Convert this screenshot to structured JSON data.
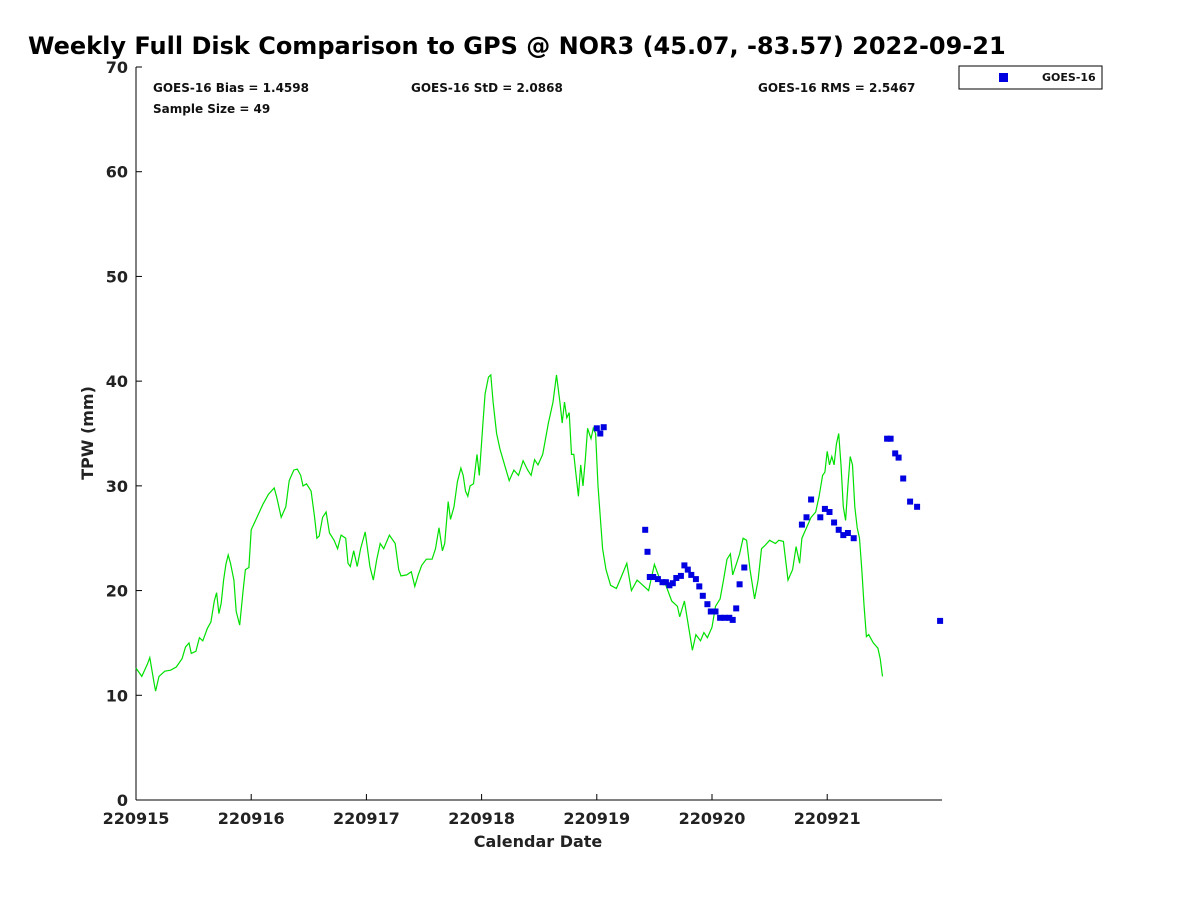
{
  "chart_data": {
    "type": "scatter",
    "title": "Weekly Full Disk Comparison to GPS @ NOR3 (45.07, -83.57) 2022-09-21",
    "xlabel": "Calendar Date",
    "ylabel": "TPW (mm)",
    "xlim": [
      0,
      7
    ],
    "ylim": [
      0,
      70
    ],
    "x_ticks": [
      0,
      1,
      2,
      3,
      4,
      5,
      6
    ],
    "x_tick_labels": [
      "220915",
      "220916",
      "220917",
      "220918",
      "220919",
      "220920",
      "220921"
    ],
    "y_ticks": [
      0,
      10,
      20,
      30,
      40,
      50,
      60,
      70
    ],
    "y_tick_labels": [
      "0",
      "10",
      "20",
      "30",
      "40",
      "50",
      "60",
      "70"
    ],
    "colors": {
      "gps": "#00e000",
      "goes16": "#0000e0"
    },
    "stats": {
      "bias": "GOES-16 Bias = 1.4598",
      "std": "GOES-16 StD = 2.0868",
      "rms": "GOES-16 RMS = 2.5467",
      "sample_size": "Sample Size = 49"
    },
    "legend": {
      "entry": "GOES-16",
      "location": "top-right outside"
    },
    "series": [
      {
        "name": "GPS",
        "style": "line",
        "points": [
          [
            0.0,
            12.6
          ],
          [
            0.05,
            11.8
          ],
          [
            0.1,
            13.0
          ],
          [
            0.12,
            13.6
          ],
          [
            0.16,
            11.0
          ],
          [
            0.17,
            10.4
          ],
          [
            0.2,
            11.8
          ],
          [
            0.25,
            12.3
          ],
          [
            0.3,
            12.4
          ],
          [
            0.35,
            12.7
          ],
          [
            0.4,
            13.5
          ],
          [
            0.43,
            14.6
          ],
          [
            0.46,
            15.0
          ],
          [
            0.48,
            14.0
          ],
          [
            0.52,
            14.2
          ],
          [
            0.55,
            15.5
          ],
          [
            0.58,
            15.2
          ],
          [
            0.62,
            16.4
          ],
          [
            0.65,
            17.0
          ],
          [
            0.68,
            19.0
          ],
          [
            0.7,
            19.8
          ],
          [
            0.72,
            17.8
          ],
          [
            0.74,
            18.8
          ],
          [
            0.76,
            21.0
          ],
          [
            0.78,
            22.5
          ],
          [
            0.8,
            23.4
          ],
          [
            0.82,
            22.6
          ],
          [
            0.85,
            21.0
          ],
          [
            0.87,
            18.0
          ],
          [
            0.9,
            16.7
          ],
          [
            0.93,
            20.0
          ],
          [
            0.95,
            22.0
          ],
          [
            0.98,
            22.2
          ],
          [
            1.0,
            25.8
          ],
          [
            1.05,
            27.0
          ],
          [
            1.1,
            28.2
          ],
          [
            1.15,
            29.2
          ],
          [
            1.2,
            29.8
          ],
          [
            1.22,
            29.0
          ],
          [
            1.26,
            27.0
          ],
          [
            1.3,
            28.0
          ],
          [
            1.33,
            30.5
          ],
          [
            1.37,
            31.5
          ],
          [
            1.4,
            31.6
          ],
          [
            1.43,
            31.0
          ],
          [
            1.45,
            30.0
          ],
          [
            1.48,
            30.2
          ],
          [
            1.52,
            29.5
          ],
          [
            1.55,
            27.0
          ],
          [
            1.57,
            25.0
          ],
          [
            1.59,
            25.2
          ],
          [
            1.62,
            27.0
          ],
          [
            1.65,
            27.5
          ],
          [
            1.68,
            25.5
          ],
          [
            1.72,
            24.8
          ],
          [
            1.75,
            24.0
          ],
          [
            1.78,
            25.3
          ],
          [
            1.82,
            25.0
          ],
          [
            1.84,
            22.6
          ],
          [
            1.86,
            22.3
          ],
          [
            1.89,
            23.8
          ],
          [
            1.92,
            22.3
          ],
          [
            1.95,
            24.0
          ],
          [
            1.99,
            25.6
          ],
          [
            2.03,
            22.3
          ],
          [
            2.06,
            21.0
          ],
          [
            2.09,
            23.0
          ],
          [
            2.12,
            24.5
          ],
          [
            2.15,
            24.0
          ],
          [
            2.2,
            25.3
          ],
          [
            2.25,
            24.5
          ],
          [
            2.28,
            22.0
          ],
          [
            2.3,
            21.4
          ],
          [
            2.35,
            21.5
          ],
          [
            2.39,
            21.8
          ],
          [
            2.42,
            20.4
          ],
          [
            2.45,
            21.5
          ],
          [
            2.48,
            22.4
          ],
          [
            2.52,
            23.0
          ],
          [
            2.57,
            23.0
          ],
          [
            2.6,
            24.0
          ],
          [
            2.63,
            26.0
          ],
          [
            2.66,
            23.8
          ],
          [
            2.68,
            24.5
          ],
          [
            2.71,
            28.5
          ],
          [
            2.73,
            26.8
          ],
          [
            2.76,
            28.0
          ],
          [
            2.79,
            30.4
          ],
          [
            2.82,
            31.7
          ],
          [
            2.84,
            31.0
          ],
          [
            2.86,
            29.5
          ],
          [
            2.88,
            29.0
          ],
          [
            2.9,
            30.0
          ],
          [
            2.93,
            30.2
          ],
          [
            2.96,
            33.0
          ],
          [
            2.98,
            31.0
          ],
          [
            3.01,
            35.8
          ],
          [
            3.03,
            38.8
          ],
          [
            3.06,
            40.4
          ],
          [
            3.08,
            40.6
          ],
          [
            3.1,
            38.0
          ],
          [
            3.13,
            35.0
          ],
          [
            3.16,
            33.5
          ],
          [
            3.2,
            32.0
          ],
          [
            3.24,
            30.5
          ],
          [
            3.28,
            31.5
          ],
          [
            3.32,
            31.0
          ],
          [
            3.36,
            32.4
          ],
          [
            3.4,
            31.5
          ],
          [
            3.43,
            31.0
          ],
          [
            3.46,
            32.5
          ],
          [
            3.49,
            32.0
          ],
          [
            3.53,
            33.0
          ],
          [
            3.58,
            36.0
          ],
          [
            3.62,
            38.0
          ],
          [
            3.65,
            40.6
          ],
          [
            3.68,
            38.0
          ],
          [
            3.7,
            36.0
          ],
          [
            3.72,
            38.0
          ],
          [
            3.74,
            36.5
          ],
          [
            3.76,
            37.0
          ],
          [
            3.78,
            33.0
          ],
          [
            3.8,
            33.0
          ],
          [
            3.82,
            31.0
          ],
          [
            3.84,
            29.0
          ],
          [
            3.86,
            32.0
          ],
          [
            3.88,
            30.0
          ],
          [
            3.9,
            32.5
          ],
          [
            3.92,
            35.5
          ],
          [
            3.95,
            34.5
          ],
          [
            3.97,
            35.5
          ],
          [
            3.99,
            35.0
          ],
          [
            4.01,
            30.0
          ],
          [
            4.03,
            27.0
          ],
          [
            4.05,
            24.0
          ],
          [
            4.08,
            22.0
          ],
          [
            4.12,
            20.5
          ],
          [
            4.17,
            20.2
          ],
          [
            4.22,
            21.5
          ],
          [
            4.26,
            22.6
          ],
          [
            4.3,
            20.0
          ],
          [
            4.35,
            21.0
          ],
          [
            4.4,
            20.5
          ],
          [
            4.45,
            20.0
          ],
          [
            4.5,
            22.5
          ],
          [
            4.55,
            21.0
          ],
          [
            4.6,
            20.5
          ],
          [
            4.65,
            19.0
          ],
          [
            4.7,
            18.5
          ],
          [
            4.72,
            17.5
          ],
          [
            4.76,
            19.0
          ],
          [
            4.79,
            17.0
          ],
          [
            4.83,
            14.3
          ],
          [
            4.86,
            15.8
          ],
          [
            4.9,
            15.2
          ],
          [
            4.93,
            16.0
          ],
          [
            4.96,
            15.5
          ],
          [
            5.0,
            16.5
          ],
          [
            5.03,
            18.5
          ],
          [
            5.07,
            19.2
          ],
          [
            5.1,
            21.0
          ],
          [
            5.13,
            23.0
          ],
          [
            5.16,
            23.5
          ],
          [
            5.18,
            21.5
          ],
          [
            5.21,
            22.5
          ],
          [
            5.24,
            23.5
          ],
          [
            5.27,
            25.0
          ],
          [
            5.3,
            24.8
          ],
          [
            5.33,
            22.0
          ],
          [
            5.37,
            19.2
          ],
          [
            5.4,
            21.0
          ],
          [
            5.43,
            24.0
          ],
          [
            5.46,
            24.3
          ],
          [
            5.5,
            24.8
          ],
          [
            5.55,
            24.5
          ],
          [
            5.58,
            24.8
          ],
          [
            5.62,
            24.7
          ],
          [
            5.66,
            21.0
          ],
          [
            5.7,
            22.0
          ],
          [
            5.73,
            24.2
          ],
          [
            5.76,
            22.6
          ],
          [
            5.78,
            25.0
          ],
          [
            5.82,
            26.0
          ],
          [
            5.86,
            27.0
          ],
          [
            5.9,
            27.5
          ],
          [
            5.93,
            29.0
          ],
          [
            5.96,
            31.0
          ],
          [
            5.98,
            31.3
          ],
          [
            6.0,
            33.3
          ],
          [
            6.02,
            32.0
          ],
          [
            6.04,
            32.8
          ],
          [
            6.06,
            32.0
          ],
          [
            6.08,
            34.0
          ],
          [
            6.1,
            35.0
          ],
          [
            6.12,
            32.0
          ],
          [
            6.14,
            28.0
          ],
          [
            6.16,
            26.7
          ],
          [
            6.18,
            30.0
          ],
          [
            6.2,
            32.8
          ],
          [
            6.22,
            32.0
          ],
          [
            6.24,
            28.0
          ],
          [
            6.26,
            26.0
          ],
          [
            6.28,
            25.0
          ],
          [
            6.3,
            22.0
          ],
          [
            6.32,
            18.5
          ],
          [
            6.34,
            15.6
          ],
          [
            6.36,
            15.8
          ],
          [
            6.4,
            15.0
          ],
          [
            6.44,
            14.5
          ],
          [
            6.46,
            13.5
          ],
          [
            6.48,
            11.8
          ]
        ]
      },
      {
        "name": "GOES-16",
        "style": "square-markers",
        "points": [
          [
            4.0,
            35.5
          ],
          [
            4.03,
            35.0
          ],
          [
            4.06,
            35.6
          ],
          [
            4.42,
            25.8
          ],
          [
            4.44,
            23.7
          ],
          [
            4.46,
            21.3
          ],
          [
            4.49,
            21.3
          ],
          [
            4.53,
            21.1
          ],
          [
            4.57,
            20.8
          ],
          [
            4.6,
            20.8
          ],
          [
            4.63,
            20.5
          ],
          [
            4.66,
            20.7
          ],
          [
            4.69,
            21.2
          ],
          [
            4.73,
            21.4
          ],
          [
            4.76,
            22.4
          ],
          [
            4.79,
            22.0
          ],
          [
            4.82,
            21.5
          ],
          [
            4.86,
            21.1
          ],
          [
            4.89,
            20.4
          ],
          [
            4.92,
            19.5
          ],
          [
            4.96,
            18.7
          ],
          [
            4.99,
            18.0
          ],
          [
            5.03,
            18.0
          ],
          [
            5.07,
            17.4
          ],
          [
            5.11,
            17.4
          ],
          [
            5.15,
            17.4
          ],
          [
            5.18,
            17.2
          ],
          [
            5.21,
            18.3
          ],
          [
            5.24,
            20.6
          ],
          [
            5.28,
            22.2
          ],
          [
            5.78,
            26.3
          ],
          [
            5.82,
            27.0
          ],
          [
            5.86,
            28.7
          ],
          [
            5.94,
            27.0
          ],
          [
            5.98,
            27.8
          ],
          [
            6.02,
            27.5
          ],
          [
            6.06,
            26.5
          ],
          [
            6.1,
            25.8
          ],
          [
            6.14,
            25.3
          ],
          [
            6.18,
            25.5
          ],
          [
            6.23,
            25.0
          ],
          [
            6.52,
            34.5
          ],
          [
            6.55,
            34.5
          ],
          [
            6.59,
            33.1
          ],
          [
            6.62,
            32.7
          ],
          [
            6.66,
            30.7
          ],
          [
            6.72,
            28.5
          ],
          [
            6.78,
            28.0
          ],
          [
            6.98,
            17.1
          ]
        ]
      }
    ]
  }
}
